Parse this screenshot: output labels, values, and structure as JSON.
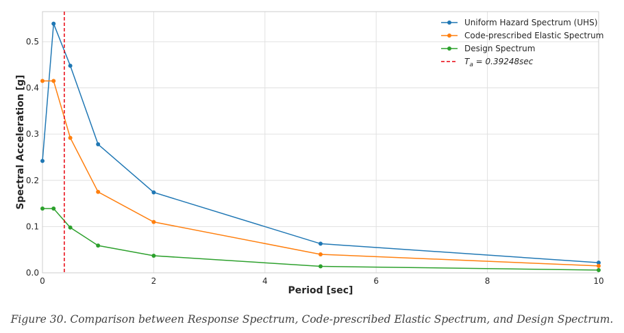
{
  "chart_data": {
    "type": "line",
    "xlabel": "Period [sec]",
    "ylabel": "Spectral Acceleration [g]",
    "xlim": [
      0,
      10
    ],
    "ylim": [
      0,
      0.565
    ],
    "xticks": [
      0,
      2,
      4,
      6,
      8,
      10
    ],
    "yticks": [
      0.0,
      0.1,
      0.2,
      0.3,
      0.4,
      0.5
    ],
    "grid": true,
    "legend_position": "top-right",
    "series": [
      {
        "name": "Uniform Hazard Spectrum (UHS)",
        "color": "#1f77b4",
        "x": [
          0,
          0.2,
          0.5,
          1.0,
          2.0,
          5.0,
          10.0
        ],
        "y": [
          0.242,
          0.539,
          0.448,
          0.278,
          0.174,
          0.063,
          0.022
        ]
      },
      {
        "name": "Code-prescribed Elastic Spectrum",
        "color": "#ff7f0e",
        "x": [
          0,
          0.2,
          0.5,
          1.0,
          2.0,
          5.0,
          10.0
        ],
        "y": [
          0.415,
          0.415,
          0.292,
          0.175,
          0.11,
          0.04,
          0.015
        ]
      },
      {
        "name": "Design Spectrum",
        "color": "#2ca02c",
        "x": [
          0,
          0.2,
          0.5,
          1.0,
          2.0,
          5.0,
          10.0
        ],
        "y": [
          0.139,
          0.139,
          0.098,
          0.059,
          0.037,
          0.014,
          0.006
        ]
      }
    ],
    "vline": {
      "x": 0.39248,
      "color": "#e8000b",
      "label_prefix": "T",
      "label_sub": "a",
      "label_suffix": " = 0.39248sec"
    }
  },
  "caption": "Figure 30. Comparison between Response Spectrum, Code-prescribed Elastic Spectrum, and Design Spectrum."
}
